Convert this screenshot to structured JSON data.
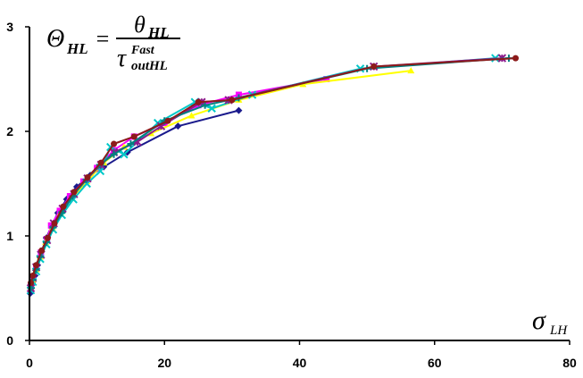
{
  "chart_data": {
    "type": "line",
    "title": "",
    "formula": {
      "lhs": "Θ",
      "lhs_sub": "HL",
      "equals": "=",
      "num": "θ",
      "num_sub": "HL",
      "den": "τ",
      "den_sup": "Fast",
      "den_sub": "outHL"
    },
    "xlabel": {
      "symbol": "σ",
      "sub": "LH"
    },
    "ylabel": "",
    "xlim": [
      0,
      80
    ],
    "ylim": [
      0,
      3
    ],
    "x_ticks": [
      "0",
      "20",
      "40",
      "60",
      "80"
    ],
    "y_ticks": [
      "0",
      "1",
      "2",
      "3"
    ],
    "grid": false,
    "legend": "none",
    "series": [
      {
        "color": "#1a1a8c",
        "marker": "diamond",
        "x": [
          0.1,
          0.3,
          0.5,
          0.8,
          1.2,
          1.8,
          2.5,
          3.3,
          4.2,
          5.5,
          7.0,
          9.0,
          11.0,
          14.5,
          22.0,
          31.0
        ],
        "y": [
          0.45,
          0.5,
          0.56,
          0.62,
          0.72,
          0.85,
          0.98,
          1.1,
          1.22,
          1.35,
          1.47,
          1.58,
          1.66,
          1.8,
          2.05,
          2.2
        ]
      },
      {
        "color": "#ff00ff",
        "marker": "square",
        "x": [
          0.2,
          0.5,
          1.0,
          1.7,
          2.6,
          3.2,
          4.5,
          6.0,
          8.0,
          10.0,
          12.5,
          15.5,
          20.0,
          25.0,
          31.0,
          44.0
        ],
        "y": [
          0.52,
          0.6,
          0.7,
          0.84,
          0.97,
          1.1,
          1.24,
          1.38,
          1.52,
          1.65,
          1.82,
          1.95,
          2.08,
          2.25,
          2.35,
          2.5
        ]
      },
      {
        "color": "#ffff00",
        "marker": "triangle",
        "x": [
          0.2,
          0.5,
          1.0,
          1.6,
          2.4,
          3.4,
          4.6,
          6.2,
          8.5,
          11.0,
          14.0,
          18.0,
          24.0,
          31.0,
          40.5,
          56.5
        ],
        "y": [
          0.5,
          0.58,
          0.68,
          0.8,
          0.94,
          1.08,
          1.22,
          1.36,
          1.52,
          1.7,
          1.85,
          1.98,
          2.15,
          2.3,
          2.45,
          2.58
        ]
      },
      {
        "color": "#00c8c8",
        "marker": "x",
        "x": [
          0.2,
          0.5,
          1.0,
          1.6,
          2.5,
          3.5,
          4.8,
          6.5,
          8.5,
          10.5,
          12.0,
          14.0,
          19.0,
          24.5,
          27.0,
          33.0,
          49.0,
          69.0
        ],
        "y": [
          0.48,
          0.56,
          0.66,
          0.78,
          0.92,
          1.06,
          1.2,
          1.35,
          1.5,
          1.62,
          1.85,
          1.78,
          2.08,
          2.28,
          2.22,
          2.35,
          2.6,
          2.7
        ]
      },
      {
        "color": "#8c1a8c",
        "marker": "star",
        "x": [
          0.2,
          0.5,
          1.0,
          1.7,
          2.6,
          3.6,
          4.9,
          6.6,
          8.6,
          10.6,
          12.5,
          16.0,
          19.5,
          25.5,
          29.5,
          51.0,
          70.0
        ],
        "y": [
          0.5,
          0.6,
          0.7,
          0.82,
          0.96,
          1.12,
          1.26,
          1.4,
          1.55,
          1.68,
          1.8,
          1.9,
          2.05,
          2.28,
          2.3,
          2.62,
          2.7
        ]
      },
      {
        "color": "#008080",
        "marker": "plus",
        "x": [
          0.2,
          0.5,
          1.0,
          1.6,
          2.5,
          3.5,
          4.8,
          6.4,
          8.4,
          10.4,
          12.5,
          15.0,
          20.0,
          26.0,
          31.0,
          50.0,
          71.0
        ],
        "y": [
          0.5,
          0.58,
          0.68,
          0.8,
          0.94,
          1.08,
          1.22,
          1.38,
          1.54,
          1.68,
          1.78,
          1.88,
          2.1,
          2.25,
          2.32,
          2.6,
          2.7
        ]
      },
      {
        "color": "#8c1a1a",
        "marker": "circle",
        "x": [
          0.2,
          0.5,
          1.0,
          1.8,
          2.7,
          3.7,
          5.0,
          6.6,
          8.6,
          10.6,
          12.5,
          15.5,
          20.5,
          25.0,
          30.0,
          51.0,
          72.0
        ],
        "y": [
          0.55,
          0.62,
          0.72,
          0.86,
          0.98,
          1.12,
          1.28,
          1.42,
          1.56,
          1.7,
          1.88,
          1.95,
          2.1,
          2.28,
          2.3,
          2.62,
          2.7
        ]
      }
    ]
  }
}
